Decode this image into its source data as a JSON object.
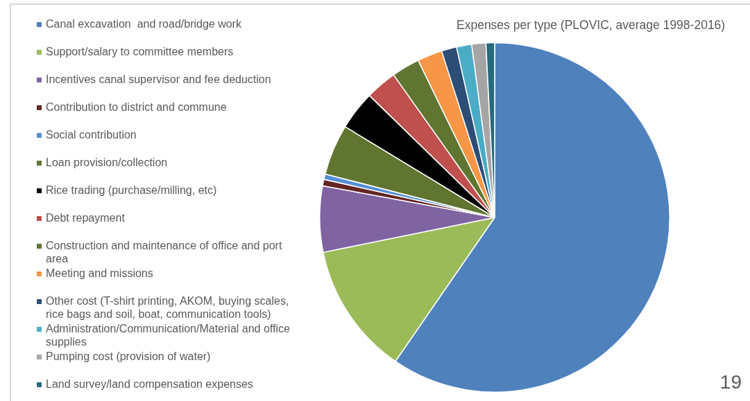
{
  "chart_data": {
    "type": "pie",
    "title": "Expenses per type (PLOVIC, average 1998-2016)",
    "categories": [
      "Canal excavation  and road/bridge work",
      "Support/salary to committee members",
      "Incentives canal supervisor and fee deduction",
      "Contribution to district and commune",
      "Social contribution",
      "Loan provision/collection",
      "Rice trading (purchase/milling, etc)",
      "Debt repayment",
      "Construction and maintenance of office and port area",
      "Meeting and missions",
      "Other cost (T-shirt printing, AKOM, buying scales, rice bags and soil, boat, communication tools)",
      "Administration/Communication/Material and office supplies",
      "Pumping cost (provision of water)",
      "Land survey/land compensation expenses"
    ],
    "values": [
      59.6,
      12.2,
      6.1,
      0.6,
      0.5,
      4.7,
      3.6,
      2.9,
      2.6,
      2.3,
      1.4,
      1.4,
      1.3,
      0.8
    ],
    "colors": [
      "#4f81bd",
      "#9bbb59",
      "#8064a2",
      "#632523",
      "#558ed5",
      "#5f7530",
      "#000000",
      "#c0504d",
      "#5f7530",
      "#f79646",
      "#2c4d75",
      "#4bacc6",
      "#a5a5a5",
      "#276a7c"
    ],
    "legend": "left",
    "annotations": [
      "19"
    ]
  }
}
